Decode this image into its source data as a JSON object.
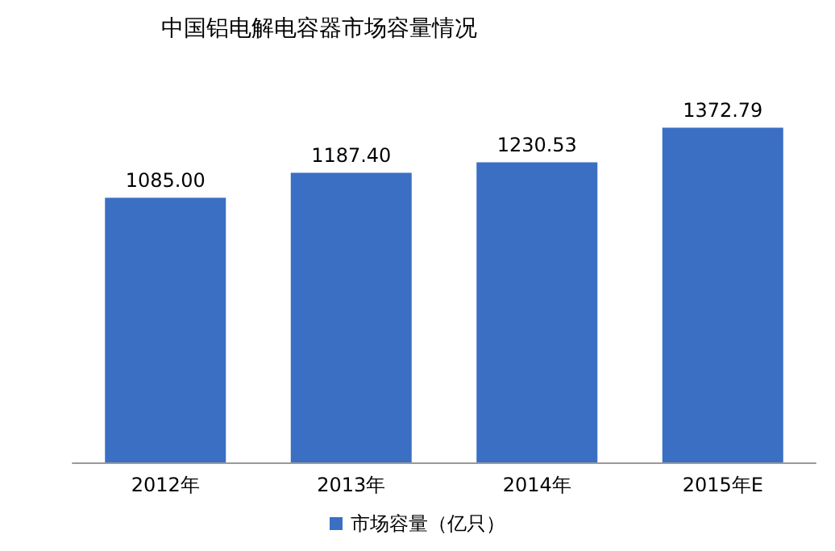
{
  "chart_data": {
    "type": "bar",
    "title": "中国铝电解电容器市场容量情况",
    "categories": [
      "2012年",
      "2013年",
      "2014年",
      "2015年E"
    ],
    "series": [
      {
        "name": "市场容量（亿只）",
        "color": "#3a6fc4",
        "values": [
          1085.0,
          1187.4,
          1230.53,
          1372.79
        ],
        "value_labels": [
          "1085.00",
          "1187.40",
          "1230.53",
          "1372.79"
        ]
      }
    ],
    "legend": "bottom"
  }
}
